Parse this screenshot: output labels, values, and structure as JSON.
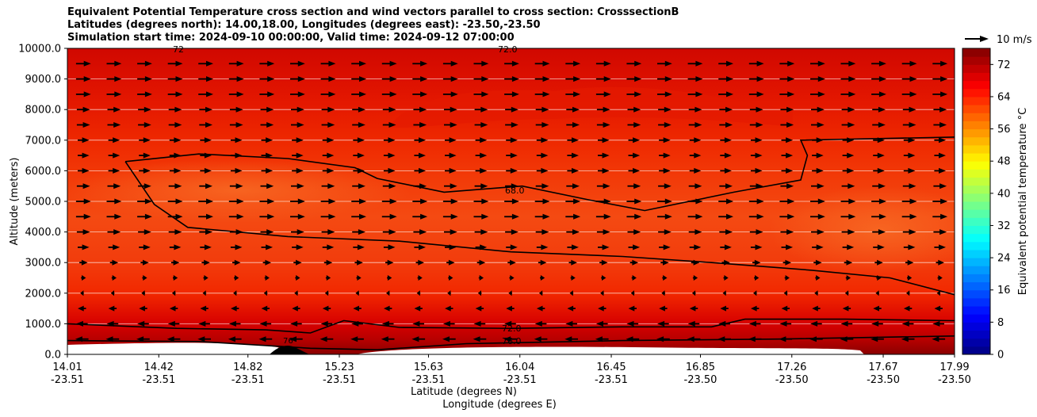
{
  "figure": {
    "title_lines": [
      "Equivalent Potential Temperature cross section and wind vectors parallel to cross section: CrosssectionB",
      "Latitudes (degrees north): 14.00,18.00, Longitudes (degrees east): -23.50,-23.50",
      "Simulation start time: 2024-09-10 00:00:00, Valid time: 2024-09-12 07:00:00"
    ],
    "quiver_key_label": "10 m/s"
  },
  "chart_data": {
    "type": "heatmap",
    "ylabel": "Altitude (meters)",
    "xlabel_lines": [
      "Latitude (degrees N)",
      "Longitude (degrees E)"
    ],
    "ylim": [
      0,
      10000
    ],
    "yticks": [
      "0.0",
      "1000.0",
      "2000.0",
      "3000.0",
      "4000.0",
      "5000.0",
      "6000.0",
      "7000.0",
      "8000.0",
      "9000.0",
      "10000.0"
    ],
    "xticks": [
      {
        "lat": "14.01",
        "lon": "-23.51"
      },
      {
        "lat": "14.42",
        "lon": "-23.51"
      },
      {
        "lat": "14.82",
        "lon": "-23.51"
      },
      {
        "lat": "15.23",
        "lon": "-23.51"
      },
      {
        "lat": "15.63",
        "lon": "-23.51"
      },
      {
        "lat": "16.04",
        "lon": "-23.51"
      },
      {
        "lat": "16.45",
        "lon": "-23.51"
      },
      {
        "lat": "16.85",
        "lon": "-23.50"
      },
      {
        "lat": "17.26",
        "lon": "-23.50"
      },
      {
        "lat": "17.67",
        "lon": "-23.50"
      },
      {
        "lat": "17.99",
        "lon": "-23.50"
      }
    ],
    "xlim": [
      14.01,
      17.99
    ],
    "colorbar": {
      "label": "Equivalent potential temperature °C",
      "range": [
        0,
        76
      ],
      "ticks": [
        "0",
        "8",
        "16",
        "24",
        "32",
        "40",
        "48",
        "56",
        "64",
        "72"
      ]
    },
    "contour_labels": [
      "72.0",
      "68.0",
      "72.0",
      "76.0",
      "72",
      "76"
    ],
    "contours": [
      {
        "level": 68,
        "points": [
          [
            14.27,
            6300
          ],
          [
            14.6,
            6550
          ],
          [
            15.0,
            6400
          ],
          [
            15.3,
            6100
          ],
          [
            15.4,
            5750
          ],
          [
            15.7,
            5300
          ],
          [
            16.05,
            5500
          ],
          [
            16.35,
            5050
          ],
          [
            16.6,
            4700
          ],
          [
            17.0,
            5300
          ],
          [
            17.3,
            5700
          ],
          [
            17.33,
            6500
          ],
          [
            17.3,
            7000
          ],
          [
            17.99,
            7100
          ]
        ]
      },
      {
        "level": 68,
        "points": [
          [
            14.27,
            6300
          ],
          [
            14.4,
            4900
          ],
          [
            14.55,
            4150
          ],
          [
            15.0,
            3850
          ],
          [
            15.5,
            3700
          ],
          [
            16.0,
            3350
          ],
          [
            16.5,
            3200
          ],
          [
            16.9,
            3000
          ],
          [
            17.35,
            2750
          ],
          [
            17.7,
            2500
          ],
          [
            17.99,
            1950
          ]
        ]
      },
      {
        "level": 72,
        "points": [
          [
            14.01,
            1000
          ],
          [
            14.5,
            850
          ],
          [
            14.9,
            800
          ],
          [
            15.1,
            700
          ],
          [
            15.25,
            1100
          ],
          [
            15.5,
            880
          ],
          [
            16.0,
            850
          ],
          [
            16.5,
            900
          ],
          [
            16.9,
            900
          ],
          [
            17.05,
            1150
          ],
          [
            17.5,
            1150
          ],
          [
            17.99,
            1100
          ]
        ]
      },
      {
        "level": 76,
        "points": [
          [
            14.01,
            450
          ],
          [
            14.6,
            420
          ],
          [
            15.1,
            200
          ],
          [
            15.4,
            150
          ],
          [
            15.8,
            350
          ],
          [
            16.5,
            450
          ],
          [
            17.2,
            500
          ],
          [
            17.99,
            600
          ]
        ]
      }
    ],
    "wind": {
      "description": "wind vectors parallel to cross section",
      "levels_m": [
        9500,
        9000,
        8500,
        8000,
        7500,
        7000,
        6500,
        6000,
        5500,
        5000,
        4500,
        4000,
        3500,
        3000,
        2500,
        2000,
        1500,
        1000,
        500
      ],
      "speed_ms": [
        8,
        8,
        8,
        7,
        7,
        6,
        6,
        6,
        7,
        8,
        8,
        7,
        6,
        4,
        2,
        -1,
        -4,
        -6,
        -7
      ]
    },
    "colors": {
      "grid": "#ffffff",
      "contour": "#000000",
      "arrow": "#000000"
    }
  }
}
